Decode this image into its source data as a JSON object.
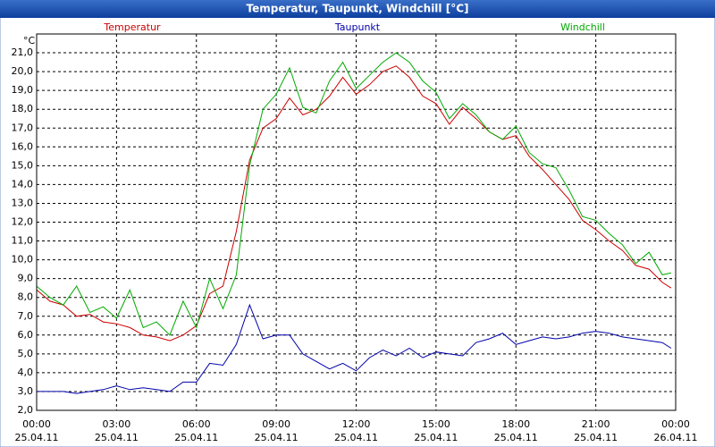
{
  "chart_data": {
    "type": "line",
    "title": "Temperatur, Taupunkt, Windchill [°C]",
    "y_label": "°C",
    "x": [
      0,
      0.5,
      1,
      1.5,
      2,
      2.5,
      3,
      3.5,
      4,
      4.5,
      5,
      5.5,
      6,
      6.5,
      7,
      7.5,
      8,
      8.5,
      9,
      9.5,
      10,
      10.5,
      11,
      11.5,
      12,
      12.5,
      13,
      13.5,
      14,
      14.5,
      15,
      15.5,
      16,
      16.5,
      17,
      17.5,
      18,
      18.5,
      19,
      19.5,
      20,
      20.5,
      21,
      21.5,
      22,
      22.5,
      23,
      23.5,
      23.83
    ],
    "series": [
      {
        "name": "Temperatur",
        "color": "#cc0000",
        "values": [
          8.4,
          7.8,
          7.6,
          7.0,
          7.1,
          6.7,
          6.6,
          6.4,
          6.0,
          5.9,
          5.7,
          6.0,
          6.5,
          8.2,
          8.6,
          11.5,
          15.3,
          17.0,
          17.5,
          18.6,
          17.7,
          18.0,
          18.7,
          19.7,
          18.8,
          19.3,
          20.0,
          20.3,
          19.7,
          18.7,
          18.3,
          17.2,
          18.1,
          17.5,
          16.8,
          16.4,
          16.6,
          15.5,
          14.8,
          14.0,
          13.2,
          12.1,
          11.6,
          11.0,
          10.5,
          9.7,
          9.5,
          8.8,
          8.5
        ]
      },
      {
        "name": "Taupunkt",
        "color": "#0000aa",
        "values": [
          3.0,
          3.0,
          3.0,
          2.9,
          3.0,
          3.1,
          3.3,
          3.1,
          3.2,
          3.1,
          3.0,
          3.5,
          3.5,
          4.5,
          4.4,
          5.5,
          7.6,
          5.8,
          6.0,
          6.0,
          5.0,
          4.6,
          4.2,
          4.5,
          4.1,
          4.8,
          5.2,
          4.9,
          5.3,
          4.8,
          5.1,
          5.0,
          4.9,
          5.6,
          5.8,
          6.1,
          5.5,
          5.7,
          5.9,
          5.8,
          5.9,
          6.1,
          6.2,
          6.1,
          5.9,
          5.8,
          5.7,
          5.6,
          5.3
        ]
      },
      {
        "name": "Windchill",
        "color": "#00aa00",
        "values": [
          8.6,
          8.0,
          7.6,
          8.6,
          7.2,
          7.5,
          6.9,
          8.4,
          6.4,
          6.7,
          6.0,
          7.8,
          6.4,
          9.0,
          7.4,
          9.2,
          15.0,
          18.0,
          18.8,
          20.2,
          18.1,
          17.8,
          19.5,
          20.5,
          19.1,
          19.8,
          20.5,
          21.0,
          20.5,
          19.5,
          18.9,
          17.5,
          18.3,
          17.7,
          16.8,
          16.4,
          17.1,
          15.7,
          15.1,
          14.9,
          13.7,
          12.3,
          12.1,
          11.4,
          10.8,
          9.8,
          10.4,
          9.2,
          9.3
        ]
      }
    ],
    "xlim": [
      0,
      24
    ],
    "xticks": [
      {
        "value": 0,
        "label": "00:00"
      },
      {
        "value": 3,
        "label": "03:00"
      },
      {
        "value": 6,
        "label": "06:00"
      },
      {
        "value": 9,
        "label": "09:00"
      },
      {
        "value": 12,
        "label": "12:00"
      },
      {
        "value": 15,
        "label": "15:00"
      },
      {
        "value": 18,
        "label": "18:00"
      },
      {
        "value": 21,
        "label": "21:00"
      },
      {
        "value": 24,
        "label": "00:00"
      }
    ],
    "xtick_dates": [
      "25.04.11",
      "25.04.11",
      "25.04.11",
      "25.04.11",
      "25.04.11",
      "25.04.11",
      "25.04.11",
      "25.04.11",
      "26.04.11"
    ],
    "ylim": [
      2,
      22
    ],
    "yticks": [
      {
        "value": 2,
        "label": "2,0"
      },
      {
        "value": 3,
        "label": "3,0"
      },
      {
        "value": 4,
        "label": "4,0"
      },
      {
        "value": 5,
        "label": "5,0"
      },
      {
        "value": 6,
        "label": "6,0"
      },
      {
        "value": 7,
        "label": "7,0"
      },
      {
        "value": 8,
        "label": "8,0"
      },
      {
        "value": 9,
        "label": "9,0"
      },
      {
        "value": 10,
        "label": "10,0"
      },
      {
        "value": 11,
        "label": "11,0"
      },
      {
        "value": 12,
        "label": "12,0"
      },
      {
        "value": 13,
        "label": "13,0"
      },
      {
        "value": 14,
        "label": "14,0"
      },
      {
        "value": 15,
        "label": "15,0"
      },
      {
        "value": 16,
        "label": "16,0"
      },
      {
        "value": 17,
        "label": "17,0"
      },
      {
        "value": 18,
        "label": "18,0"
      },
      {
        "value": 19,
        "label": "19,0"
      },
      {
        "value": 20,
        "label": "20,0"
      },
      {
        "value": 21,
        "label": "21,0"
      }
    ],
    "grid": true
  }
}
